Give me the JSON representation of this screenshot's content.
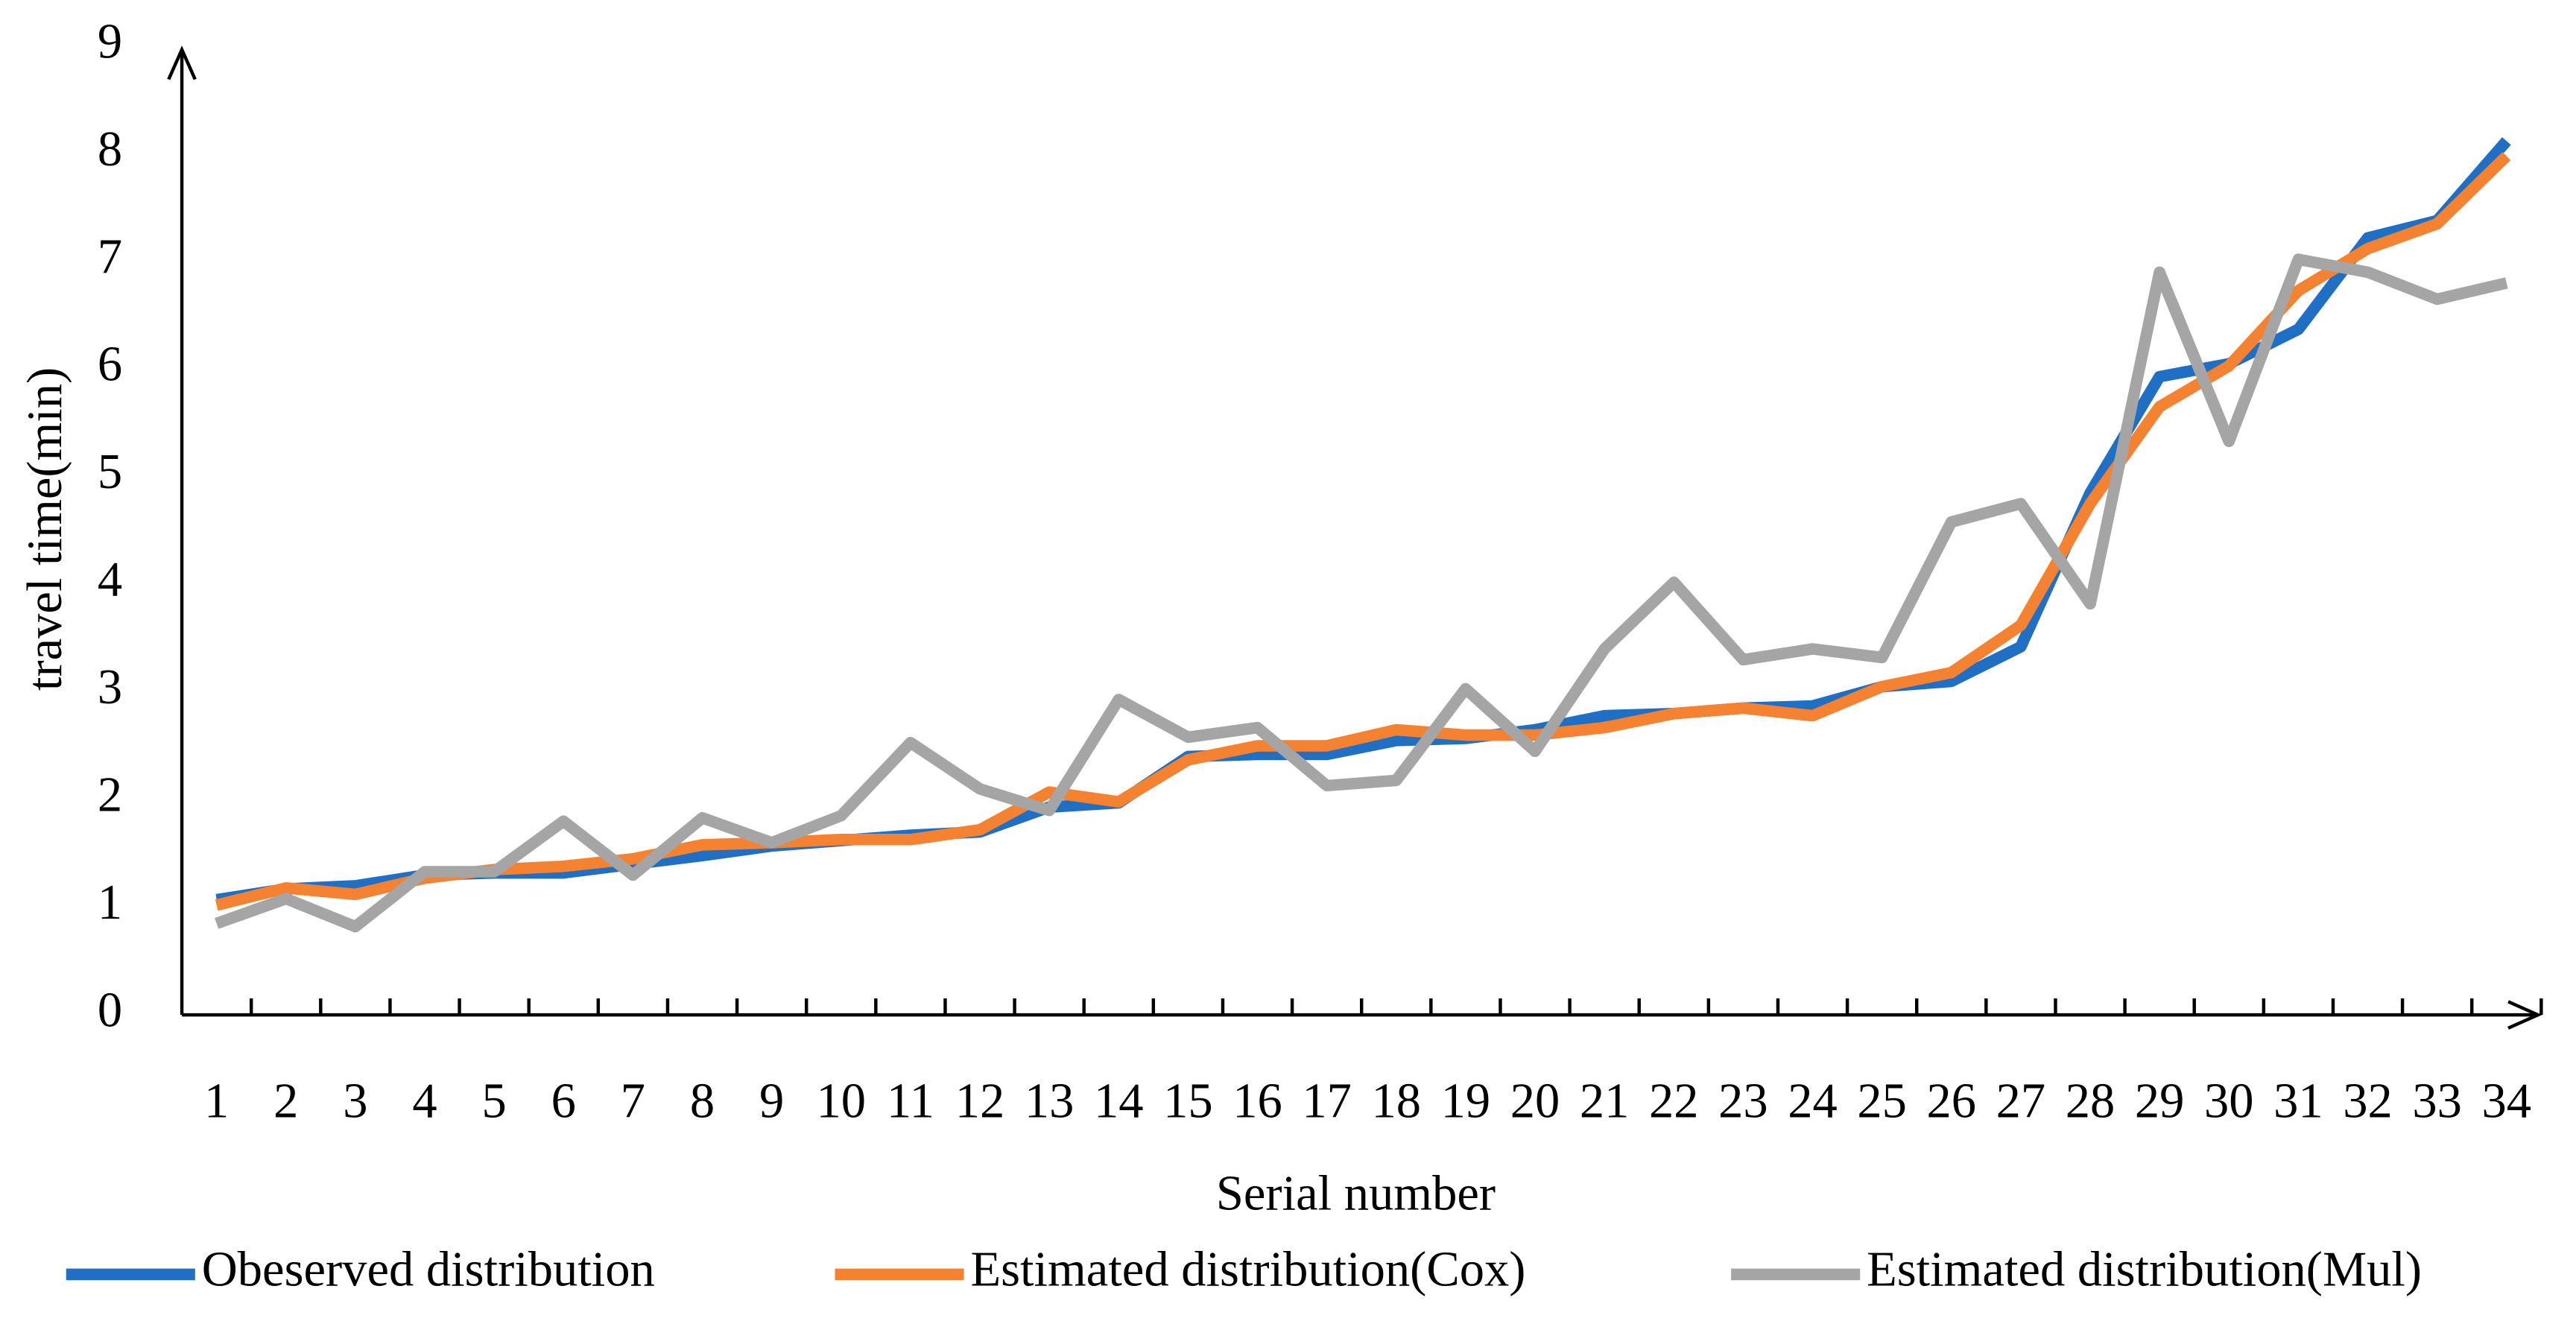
{
  "chart_data": {
    "type": "line",
    "x_label": "Serial number",
    "y_label": "travel time(min)",
    "categories": [
      "1",
      "2",
      "3",
      "4",
      "5",
      "6",
      "7",
      "8",
      "9",
      "10",
      "11",
      "12",
      "13",
      "14",
      "15",
      "16",
      "17",
      "18",
      "19",
      "20",
      "21",
      "22",
      "23",
      "24",
      "25",
      "26",
      "27",
      "28",
      "29",
      "30",
      "31",
      "32",
      "33",
      "34"
    ],
    "series": [
      {
        "name": "Obeserved distribution",
        "color": "#1f6fc5",
        "values": [
          1.07,
          1.17,
          1.2,
          1.3,
          1.32,
          1.32,
          1.4,
          1.48,
          1.57,
          1.62,
          1.67,
          1.7,
          1.93,
          1.97,
          2.4,
          2.42,
          2.42,
          2.55,
          2.57,
          2.65,
          2.78,
          2.8,
          2.85,
          2.87,
          3.05,
          3.1,
          3.42,
          4.85,
          5.93,
          6.05,
          6.37,
          7.22,
          7.38,
          8.12
        ]
      },
      {
        "name": "Estimated distribution(Cox)",
        "color": "#f58231",
        "values": [
          1.02,
          1.18,
          1.12,
          1.27,
          1.35,
          1.38,
          1.45,
          1.58,
          1.6,
          1.63,
          1.63,
          1.72,
          2.07,
          1.98,
          2.37,
          2.5,
          2.5,
          2.65,
          2.6,
          2.6,
          2.67,
          2.8,
          2.85,
          2.78,
          3.05,
          3.18,
          3.62,
          4.75,
          5.65,
          6.03,
          6.73,
          7.12,
          7.35,
          7.98
        ]
      },
      {
        "name": "Estimated distribution(Mul)",
        "color": "#a5a5a5",
        "values": [
          0.85,
          1.08,
          0.82,
          1.33,
          1.33,
          1.8,
          1.3,
          1.83,
          1.6,
          1.85,
          2.53,
          2.1,
          1.9,
          2.93,
          2.58,
          2.67,
          2.13,
          2.18,
          3.03,
          2.45,
          3.4,
          4.02,
          3.3,
          3.4,
          3.32,
          4.58,
          4.75,
          3.82,
          6.9,
          5.33,
          7.02,
          6.9,
          6.65,
          6.8
        ]
      }
    ],
    "ylim": [
      0,
      9
    ],
    "yticks": [
      0,
      1,
      2,
      3,
      4,
      5,
      6,
      7,
      8,
      9
    ],
    "grid": false,
    "legend": "bottom"
  }
}
